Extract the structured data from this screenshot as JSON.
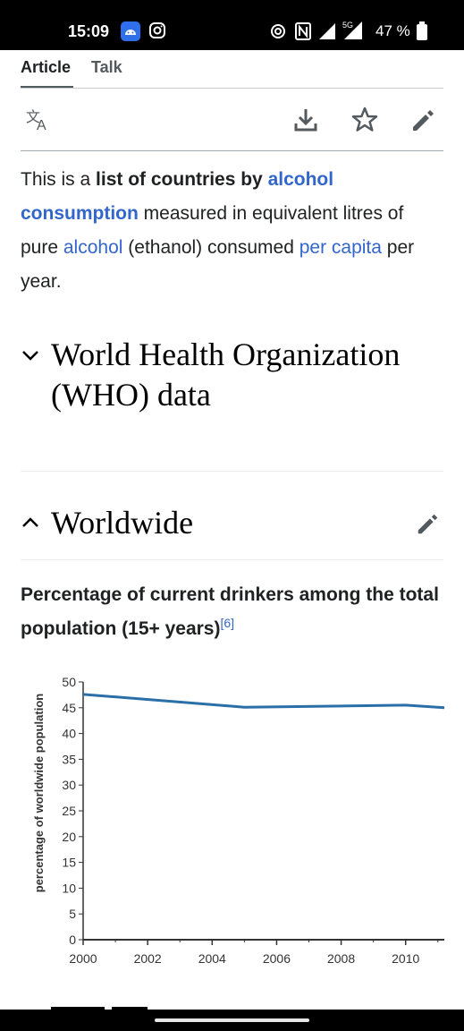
{
  "status_bar": {
    "time": "15:09",
    "network": "5G",
    "battery_text": "47 %"
  },
  "tabs": [
    {
      "label": "Article",
      "active": true
    },
    {
      "label": "Talk",
      "active": false
    }
  ],
  "toolbar": {
    "language_icon": "translate-icon",
    "download_icon": "download-icon",
    "watch_icon": "star-icon",
    "edit_icon": "pencil-icon"
  },
  "intro": {
    "t1": "This is a ",
    "bold1": "list of countries by ",
    "link1": "alcohol consumption",
    "t2": " measured in equivalent litres of pure ",
    "link2": "alcohol",
    "t3": " (ethanol) consumed ",
    "link3": "per capita",
    "t4": " per year."
  },
  "sections": {
    "who_title": "World Health Organization (WHO) data",
    "worldwide_title": "Worldwide"
  },
  "chart_heading": {
    "text": "Percentage of current drinkers among the total population (15+ years)",
    "ref": "[6]"
  },
  "colors": {
    "link": "#3366cc",
    "line_series": "#2a6fa8"
  },
  "chart_data": {
    "type": "line",
    "ylabel": "percentage of worldwide population",
    "xlabel": "",
    "ylim": [
      0,
      50
    ],
    "xlim": [
      2000,
      2011.2
    ],
    "yticks": [
      "0",
      "5",
      "10",
      "15",
      "20",
      "25",
      "30",
      "35",
      "40",
      "45",
      "50"
    ],
    "xticks": [
      "2000",
      "2002",
      "2004",
      "2006",
      "2008",
      "2010"
    ],
    "grid": false,
    "series": [
      {
        "x": [
          2000,
          2005,
          2010,
          2011.2
        ],
        "values": [
          47.6,
          45.1,
          45.5,
          45.0
        ]
      }
    ]
  }
}
